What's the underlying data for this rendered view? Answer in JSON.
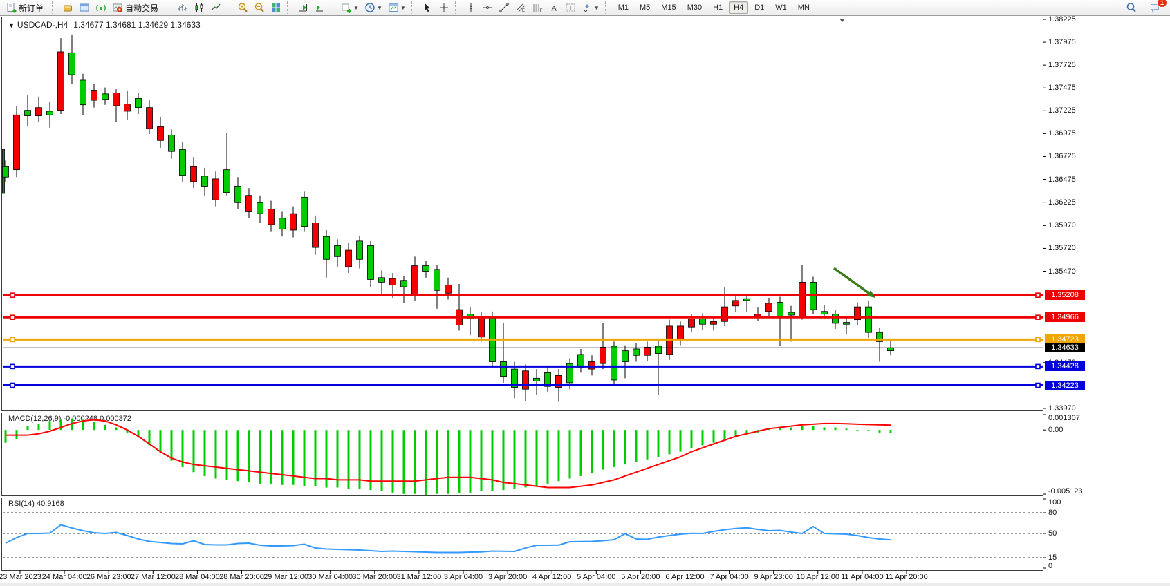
{
  "toolbar": {
    "new_order_label": "新订单",
    "auto_trading_label": "自动交易",
    "groups": [
      {
        "items": [
          {
            "icon": "new-order-icon",
            "name": "new-order",
            "label_key": "new_order_label"
          }
        ]
      },
      {
        "items": [
          {
            "icon": "market-watch-icon",
            "name": "market-watch"
          },
          {
            "icon": "data-window-icon",
            "name": "data-window"
          },
          {
            "icon": "signal-icon",
            "name": "signals"
          },
          {
            "icon": "auto-trading-icon",
            "name": "auto-trading",
            "label_key": "auto_trading_label"
          }
        ]
      },
      {
        "items": [
          {
            "icon": "bar-chart-icon",
            "name": "bar-chart"
          },
          {
            "icon": "candle-chart-icon",
            "name": "candlestick-chart"
          },
          {
            "icon": "line-chart-icon",
            "name": "line-chart"
          }
        ]
      },
      {
        "items": [
          {
            "icon": "zoom-in-icon",
            "name": "zoom-in"
          },
          {
            "icon": "zoom-out-icon",
            "name": "zoom-out"
          },
          {
            "icon": "tile-windows-icon",
            "name": "tile-windows"
          }
        ]
      },
      {
        "items": [
          {
            "icon": "auto-scroll-icon",
            "name": "auto-scroll"
          },
          {
            "icon": "chart-shift-icon",
            "name": "chart-shift"
          }
        ]
      },
      {
        "items": [
          {
            "icon": "indicators-icon",
            "name": "indicators",
            "caret": true
          },
          {
            "icon": "periods-icon",
            "name": "periods",
            "caret": true
          },
          {
            "icon": "templates-icon",
            "name": "templates",
            "caret": true
          }
        ]
      },
      {
        "items": [
          {
            "icon": "cursor-icon",
            "name": "cursor"
          },
          {
            "icon": "crosshair-icon",
            "name": "crosshair"
          }
        ]
      },
      {
        "items": [
          {
            "icon": "vline-icon",
            "name": "vertical-line"
          },
          {
            "icon": "hline-icon",
            "name": "horizontal-line"
          },
          {
            "icon": "trendline-icon",
            "name": "trendline"
          },
          {
            "icon": "channel-icon",
            "name": "equidistant-channel"
          },
          {
            "icon": "fibonacci-icon",
            "name": "fibonacci"
          },
          {
            "icon": "text-icon",
            "name": "text"
          },
          {
            "icon": "label-icon",
            "name": "text-label"
          },
          {
            "icon": "shapes-icon",
            "name": "arrows-shapes",
            "caret": true
          }
        ]
      },
      {
        "type": "timeframes",
        "items": [
          "M1",
          "M5",
          "M15",
          "M30",
          "H1",
          "H4",
          "D1",
          "W1",
          "MN"
        ],
        "active": "H4"
      }
    ],
    "right": [
      {
        "icon": "search-icon",
        "name": "search"
      },
      {
        "icon": "chat-icon",
        "name": "chat",
        "badge": "1"
      }
    ]
  },
  "chart": {
    "title_symbol": "USDCAD-,H4",
    "title_quotes": "1.34677 1.34681 1.34629 1.34633",
    "macd_label": "MACD(12,26,9) -0.000248 0.000372",
    "rsi_label": "RSI(14) 40.9168",
    "price_axis_ticks": [
      "1.38225",
      "1.37975",
      "1.37725",
      "1.37475",
      "1.37225",
      "1.36975",
      "1.36725",
      "1.36475",
      "1.36225",
      "1.35970",
      "1.35720",
      "1.35470",
      "1.34470",
      "1.33970"
    ],
    "macd_axis_ticks": [
      "0.001307",
      "0.00",
      "-0.005123"
    ],
    "rsi_axis_ticks": [
      "100",
      "80",
      "50",
      "15",
      "0"
    ],
    "line_badges": [
      {
        "text": "1.35208",
        "bg": "#ee0000"
      },
      {
        "text": "1.34966",
        "bg": "#ee0000"
      },
      {
        "text": "1.34723",
        "bg": "#f0a500"
      },
      {
        "text": "1.34633",
        "bg": "#000000"
      },
      {
        "text": "1.34428",
        "bg": "#0000dd"
      },
      {
        "text": "1.34223",
        "bg": "#0000dd"
      }
    ]
  },
  "chart_data": {
    "type": "candlestick",
    "symbol": "USDCAD-",
    "timeframe": "H4",
    "ohlc_current": {
      "open": 1.34677,
      "high": 1.34681,
      "low": 1.34629,
      "close": 1.34633
    },
    "price_range_visible": [
      1.3397,
      1.38225
    ],
    "price_axis_values": [
      1.38225,
      1.37975,
      1.37725,
      1.37475,
      1.37225,
      1.36975,
      1.36725,
      1.36475,
      1.36225,
      1.3597,
      1.3572,
      1.3547,
      1.3447,
      1.3397
    ],
    "x_labels": [
      "23 Mar 2023",
      "24 Mar 04:00",
      "26 Mar 23:00",
      "27 Mar 12:00",
      "28 Mar 04:00",
      "28 Mar 20:00",
      "29 Mar 12:00",
      "30 Mar 04:00",
      "30 Mar 20:00",
      "31 Mar 12:00",
      "3 Apr 04:00",
      "3 Apr 20:00",
      "4 Apr 12:00",
      "5 Apr 04:00",
      "5 Apr 20:00",
      "6 Apr 12:00",
      "7 Apr 04:00",
      "9 Apr 23:00",
      "10 Apr 12:00",
      "11 Apr 04:00",
      "11 Apr 20:00"
    ],
    "candles_format": [
      "open",
      "high",
      "low",
      "close"
    ],
    "candles": [
      [
        1.365,
        1.3668,
        1.3645,
        1.3662
      ],
      [
        1.3718,
        1.3728,
        1.365,
        1.3658
      ],
      [
        1.3717,
        1.374,
        1.3706,
        1.3723
      ],
      [
        1.3726,
        1.3738,
        1.371,
        1.3717
      ],
      [
        1.3718,
        1.3732,
        1.3704,
        1.3722
      ],
      [
        1.3787,
        1.3802,
        1.3719,
        1.3723
      ],
      [
        1.3762,
        1.3806,
        1.3752,
        1.3786
      ],
      [
        1.3729,
        1.3763,
        1.3718,
        1.3756
      ],
      [
        1.3745,
        1.3752,
        1.3726,
        1.3734
      ],
      [
        1.3735,
        1.3748,
        1.3729,
        1.3741
      ],
      [
        1.3742,
        1.3746,
        1.371,
        1.3728
      ],
      [
        1.373,
        1.3744,
        1.3713,
        1.3722
      ],
      [
        1.3726,
        1.3742,
        1.3719,
        1.3736
      ],
      [
        1.3726,
        1.3734,
        1.3697,
        1.3703
      ],
      [
        1.3705,
        1.3716,
        1.3682,
        1.369
      ],
      [
        1.3678,
        1.3702,
        1.367,
        1.3696
      ],
      [
        1.3652,
        1.3688,
        1.3645,
        1.368
      ],
      [
        1.3662,
        1.3672,
        1.3638,
        1.3645
      ],
      [
        1.364,
        1.366,
        1.363,
        1.3651
      ],
      [
        1.3648,
        1.3656,
        1.3618,
        1.3625
      ],
      [
        1.3633,
        1.3698,
        1.363,
        1.3658
      ],
      [
        1.3622,
        1.365,
        1.3615,
        1.364
      ],
      [
        1.363,
        1.3638,
        1.3605,
        1.3612
      ],
      [
        1.361,
        1.363,
        1.36,
        1.3622
      ],
      [
        1.3615,
        1.3624,
        1.359,
        1.3598
      ],
      [
        1.3593,
        1.3612,
        1.3585,
        1.3605
      ],
      [
        1.361,
        1.3618,
        1.3584,
        1.3592
      ],
      [
        1.3596,
        1.3634,
        1.359,
        1.3628
      ],
      [
        1.36,
        1.3608,
        1.3565,
        1.3573
      ],
      [
        1.356,
        1.3592,
        1.354,
        1.3585
      ],
      [
        1.3563,
        1.3582,
        1.3552,
        1.3575
      ],
      [
        1.357,
        1.3578,
        1.3545,
        1.3552
      ],
      [
        1.356,
        1.3586,
        1.355,
        1.358
      ],
      [
        1.3538,
        1.358,
        1.353,
        1.3575
      ],
      [
        1.3535,
        1.3548,
        1.3522,
        1.354
      ],
      [
        1.3539,
        1.3545,
        1.3518,
        1.3532
      ],
      [
        1.353,
        1.3542,
        1.3512,
        1.3537
      ],
      [
        1.3553,
        1.3563,
        1.3515,
        1.3522
      ],
      [
        1.3547,
        1.3558,
        1.354,
        1.3553
      ],
      [
        1.3526,
        1.3554,
        1.3506,
        1.3549
      ],
      [
        1.3532,
        1.354,
        1.3516,
        1.3523
      ],
      [
        1.3505,
        1.3533,
        1.3482,
        1.3488
      ],
      [
        1.3495,
        1.3508,
        1.3477,
        1.35
      ],
      [
        1.3496,
        1.3502,
        1.347,
        1.3475
      ],
      [
        1.3448,
        1.3503,
        1.3442,
        1.3497
      ],
      [
        1.3432,
        1.349,
        1.3425,
        1.3448
      ],
      [
        1.342,
        1.3448,
        1.3408,
        1.344
      ],
      [
        1.3438,
        1.3445,
        1.3405,
        1.3418
      ],
      [
        1.3427,
        1.344,
        1.3412,
        1.343
      ],
      [
        1.3421,
        1.3442,
        1.3415,
        1.3436
      ],
      [
        1.3433,
        1.344,
        1.3404,
        1.342
      ],
      [
        1.3425,
        1.3452,
        1.3418,
        1.3446
      ],
      [
        1.3442,
        1.3462,
        1.3436,
        1.3456
      ],
      [
        1.3448,
        1.3455,
        1.3433,
        1.344
      ],
      [
        1.3464,
        1.349,
        1.344,
        1.3446
      ],
      [
        1.3428,
        1.347,
        1.3422,
        1.3465
      ],
      [
        1.3448,
        1.3466,
        1.343,
        1.346
      ],
      [
        1.3455,
        1.3468,
        1.3448,
        1.3462
      ],
      [
        1.3464,
        1.347,
        1.3449,
        1.3455
      ],
      [
        1.3457,
        1.3472,
        1.3412,
        1.3465
      ],
      [
        1.3487,
        1.3494,
        1.345,
        1.3456
      ],
      [
        1.3487,
        1.3492,
        1.3466,
        1.3472
      ],
      [
        1.3495,
        1.35,
        1.348,
        1.3486
      ],
      [
        1.3489,
        1.3501,
        1.3483,
        1.3495
      ],
      [
        1.3492,
        1.3498,
        1.3482,
        1.3489
      ],
      [
        1.3508,
        1.353,
        1.3487,
        1.3492
      ],
      [
        1.3515,
        1.3521,
        1.3502,
        1.3509
      ],
      [
        1.3515,
        1.3522,
        1.3502,
        1.3517
      ],
      [
        1.35,
        1.3508,
        1.3493,
        1.3498
      ],
      [
        1.3512,
        1.3518,
        1.3498,
        1.3503
      ],
      [
        1.3497,
        1.3519,
        1.3465,
        1.3513
      ],
      [
        1.3499,
        1.3509,
        1.347,
        1.3502
      ],
      [
        1.3535,
        1.3554,
        1.3494,
        1.3497
      ],
      [
        1.3505,
        1.3541,
        1.35,
        1.3535
      ],
      [
        1.35,
        1.351,
        1.3495,
        1.3503
      ],
      [
        1.349,
        1.3505,
        1.3484,
        1.35
      ],
      [
        1.3489,
        1.3498,
        1.3478,
        1.3491
      ],
      [
        1.3508,
        1.3513,
        1.3488,
        1.3494
      ],
      [
        1.348,
        1.3515,
        1.3474,
        1.3508
      ],
      [
        1.347,
        1.3485,
        1.3448,
        1.348
      ],
      [
        1.346,
        1.3472,
        1.3455,
        1.34633
      ]
    ],
    "hlines": [
      {
        "price": 1.35208,
        "color": "#ee0000",
        "width": 3,
        "handles": true
      },
      {
        "price": 1.34966,
        "color": "#ee0000",
        "width": 3,
        "handles": true
      },
      {
        "price": 1.34723,
        "color": "#f0a500",
        "width": 3,
        "handles": true
      },
      {
        "price": 1.34633,
        "color": "#000000",
        "width": 1,
        "handles": false,
        "current_bid": true
      },
      {
        "price": 1.34428,
        "color": "#0000dd",
        "width": 3,
        "handles": true
      },
      {
        "price": 1.34223,
        "color": "#0000dd",
        "width": 3,
        "handles": true
      }
    ],
    "indicators": {
      "macd": {
        "label": "MACD(12,26,9)",
        "current": {
          "macd": -0.000248,
          "signal": 0.000372
        },
        "range": [
          -0.005123,
          0.001307
        ],
        "histogram": [
          -0.001,
          -0.0007,
          0.0003,
          0.0005,
          0.0007,
          0.0008,
          0.0009,
          0.0008,
          0.0006,
          0.0004,
          0.0002,
          -0.0002,
          -0.0006,
          -0.0012,
          -0.0018,
          -0.0024,
          -0.0029,
          -0.0033,
          -0.0036,
          -0.0038,
          -0.0039,
          -0.004,
          -0.0041,
          -0.0042,
          -0.0042,
          -0.0043,
          -0.0043,
          -0.0044,
          -0.0044,
          -0.0045,
          -0.0045,
          -0.0046,
          -0.0046,
          -0.0047,
          -0.0048,
          -0.0049,
          -0.005,
          -0.005,
          -0.0051,
          -0.005,
          -0.005,
          -0.0049,
          -0.0049,
          -0.0048,
          -0.0048,
          -0.0047,
          -0.0046,
          -0.0045,
          -0.0044,
          -0.0042,
          -0.004,
          -0.0038,
          -0.0036,
          -0.0034,
          -0.0031,
          -0.0029,
          -0.0027,
          -0.0025,
          -0.0023,
          -0.0021,
          -0.0019,
          -0.0017,
          -0.0014,
          -0.0012,
          -0.001,
          -0.0008,
          -0.0006,
          -0.0004,
          -0.0002,
          0.0001,
          0.0002,
          0.0002,
          0.0003,
          0.0003,
          0.0002,
          0.0002,
          0.0001,
          -0.0001,
          -0.0001,
          -0.0002,
          -0.000248
        ],
        "signal": [
          -0.0004,
          -0.0004,
          -0.0004,
          -0.0003,
          -0.0001,
          0.0002,
          0.0005,
          0.0007,
          0.0008,
          0.0007,
          0.0004,
          0.0,
          -0.0005,
          -0.0011,
          -0.0017,
          -0.0022,
          -0.0025,
          -0.0027,
          -0.0028,
          -0.0029,
          -0.003,
          -0.0031,
          -0.0032,
          -0.0033,
          -0.0034,
          -0.0035,
          -0.0036,
          -0.0037,
          -0.0038,
          -0.0038,
          -0.0039,
          -0.0039,
          -0.0039,
          -0.004,
          -0.004,
          -0.004,
          -0.004,
          -0.004,
          -0.0039,
          -0.0038,
          -0.0037,
          -0.0037,
          -0.0037,
          -0.0038,
          -0.0039,
          -0.0041,
          -0.0042,
          -0.0043,
          -0.0044,
          -0.0045,
          -0.0045,
          -0.0045,
          -0.0044,
          -0.0043,
          -0.0041,
          -0.0039,
          -0.0036,
          -0.0033,
          -0.003,
          -0.0027,
          -0.0024,
          -0.0021,
          -0.0017,
          -0.0014,
          -0.0011,
          -0.0008,
          -0.0005,
          -0.0003,
          -0.0001,
          0.0001,
          0.0002,
          0.0003,
          0.0004,
          0.00045,
          0.0005,
          0.0005,
          0.00048,
          0.00045,
          0.00042,
          0.0004,
          0.000372
        ]
      },
      "rsi": {
        "label": "RSI(14)",
        "period": 14,
        "current": 40.9168,
        "levels": [
          80,
          50,
          15
        ],
        "range": [
          0,
          100
        ],
        "values": [
          36,
          44,
          50,
          50,
          50.5,
          62.5,
          58,
          54,
          51,
          50,
          51.5,
          47,
          42,
          38.5,
          37,
          35.5,
          35,
          39.5,
          34,
          33.5,
          33.5,
          35.5,
          36,
          33,
          32,
          32,
          32.5,
          34.5,
          29,
          27.5,
          27,
          26.5,
          26,
          25,
          24,
          24.5,
          24,
          23.5,
          23,
          22.5,
          22.5,
          22.5,
          23,
          23.2,
          24.5,
          24.3,
          24,
          29,
          33,
          33,
          33.2,
          38,
          38.2,
          38.5,
          39.5,
          41,
          49.8,
          42,
          41.5,
          44.8,
          47,
          49,
          50.3,
          50,
          53,
          55.5,
          57.3,
          58.3,
          56,
          54,
          54.5,
          52,
          50,
          60,
          50,
          49.5,
          49,
          47,
          44,
          42,
          40.9
        ]
      }
    },
    "annotations": [
      {
        "type": "arrow",
        "color": "#3c7b17",
        "from": [
          1206,
          388
        ],
        "to": [
          1266,
          431
        ]
      }
    ]
  }
}
